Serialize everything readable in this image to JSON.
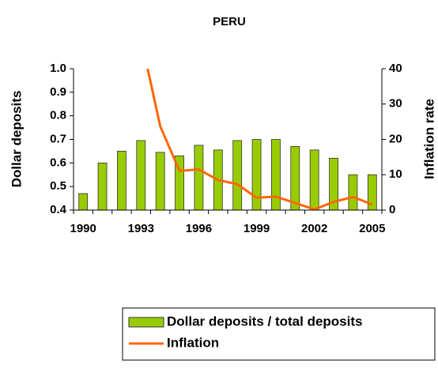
{
  "chart_data": {
    "type": "bar",
    "title": "PERU",
    "categories": [
      "1990",
      null,
      null,
      "1993",
      null,
      null,
      "1996",
      null,
      null,
      "1999",
      null,
      null,
      "2002",
      null,
      null,
      "2005"
    ],
    "series": [
      {
        "name": "Dollar deposits / total deposits",
        "color": "#99cc00",
        "type": "bar",
        "values": [
          0.47,
          0.6,
          0.65,
          0.695,
          0.645,
          0.63,
          0.675,
          0.655,
          0.695,
          0.7,
          0.7,
          0.67,
          0.655,
          0.62,
          0.55,
          0.55
        ]
      },
      {
        "name": "Inflation",
        "color": "#ff6600",
        "type": "line",
        "axis": "y2",
        "values": [
          null,
          null,
          null,
          48.6,
          23.7,
          11.1,
          11.5,
          8.5,
          7.3,
          3.5,
          3.8,
          2.0,
          0.2,
          2.3,
          3.7,
          1.6
        ]
      }
    ],
    "ylabel": "Dollar deposits",
    "y2label": "Inflation rate",
    "ylim": [
      0.4,
      1.0
    ],
    "yticks": [
      0.4,
      0.5,
      0.6,
      0.7,
      0.8,
      0.9,
      {
        "value": 1.0,
        "label": "1.0"
      }
    ],
    "y2lim": [
      0,
      40
    ],
    "y2ticks": [
      0,
      10,
      20,
      30,
      40
    ],
    "legend": "bottom"
  }
}
